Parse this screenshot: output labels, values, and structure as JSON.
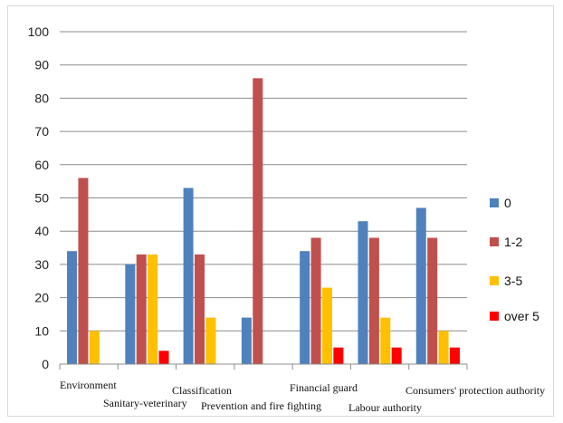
{
  "chart_data": {
    "type": "bar",
    "categories": [
      "Environment",
      "Sanitary-veterinary",
      "Classification",
      "Prevention and fire fighting",
      "Financial guard",
      "Labour authority",
      "Consumers' protection authority"
    ],
    "series": [
      {
        "name": "0",
        "color": "#4f81bd",
        "values": [
          34,
          30,
          53,
          14,
          34,
          43,
          47
        ]
      },
      {
        "name": "1-2",
        "color": "#c0504d",
        "values": [
          56,
          33,
          33,
          86,
          38,
          38,
          38
        ]
      },
      {
        "name": "3-5",
        "color": "#ffc000",
        "values": [
          10,
          33,
          14,
          0,
          23,
          14,
          10
        ]
      },
      {
        "name": "over 5",
        "color": "#ff0000",
        "values": [
          0,
          4,
          0,
          0,
          5,
          5,
          5
        ]
      }
    ],
    "ylim": [
      0,
      100
    ],
    "yticks": [
      0,
      10,
      20,
      30,
      40,
      50,
      60,
      70,
      80,
      90,
      100
    ],
    "grid": true,
    "legend_position": "right",
    "title": "",
    "xlabel": "",
    "ylabel": ""
  }
}
